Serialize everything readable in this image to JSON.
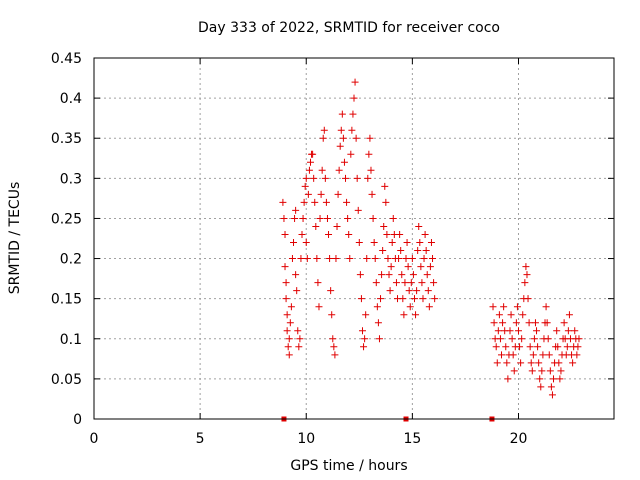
{
  "chart_data": {
    "type": "scatter",
    "title": "Day 333 of 2022, SRMTID for receiver coco",
    "xlabel": "GPS time / hours",
    "ylabel": "SRMTID / TECUs",
    "xlim": [
      0,
      24.5
    ],
    "ylim": [
      0,
      0.45
    ],
    "grid": true,
    "x_ticks": [
      0,
      5,
      10,
      15,
      20
    ],
    "x_tick_labels": [
      "0",
      "5",
      "10",
      "15",
      "20"
    ],
    "y_ticks": [
      0,
      0.05,
      0.1,
      0.15,
      0.2,
      0.25,
      0.3,
      0.35,
      0.4,
      0.45
    ],
    "y_tick_labels": [
      "0",
      "0.05",
      "0.1",
      "0.15",
      "0.2",
      "0.25",
      "0.3",
      "0.35",
      "0.4",
      "0.45"
    ],
    "marker": "+",
    "color": "#e00000",
    "series": [
      {
        "name": "SRMTID",
        "points": [
          [
            8.9,
            0.27
          ],
          [
            8.95,
            0.25
          ],
          [
            9.0,
            0.23
          ],
          [
            9.0,
            0.19
          ],
          [
            9.05,
            0.17
          ],
          [
            9.05,
            0.15
          ],
          [
            9.1,
            0.13
          ],
          [
            9.1,
            0.11
          ],
          [
            9.15,
            0.09
          ],
          [
            9.2,
            0.08
          ],
          [
            9.2,
            0.1
          ],
          [
            9.25,
            0.12
          ],
          [
            9.3,
            0.14
          ],
          [
            9.35,
            0.2
          ],
          [
            9.4,
            0.22
          ],
          [
            9.45,
            0.25
          ],
          [
            9.5,
            0.26
          ],
          [
            9.5,
            0.18
          ],
          [
            9.55,
            0.16
          ],
          [
            9.6,
            0.11
          ],
          [
            9.65,
            0.09
          ],
          [
            9.7,
            0.1
          ],
          [
            9.75,
            0.2
          ],
          [
            9.8,
            0.23
          ],
          [
            9.85,
            0.25
          ],
          [
            9.9,
            0.27
          ],
          [
            9.95,
            0.29
          ],
          [
            10.0,
            0.3
          ],
          [
            10.0,
            0.22
          ],
          [
            10.05,
            0.2
          ],
          [
            10.1,
            0.28
          ],
          [
            10.15,
            0.31
          ],
          [
            10.2,
            0.32
          ],
          [
            10.25,
            0.33
          ],
          [
            10.3,
            0.33
          ],
          [
            10.35,
            0.3
          ],
          [
            10.4,
            0.27
          ],
          [
            10.45,
            0.24
          ],
          [
            10.5,
            0.2
          ],
          [
            10.55,
            0.17
          ],
          [
            10.6,
            0.14
          ],
          [
            10.65,
            0.25
          ],
          [
            10.7,
            0.28
          ],
          [
            10.75,
            0.31
          ],
          [
            10.8,
            0.35
          ],
          [
            10.85,
            0.36
          ],
          [
            10.9,
            0.3
          ],
          [
            10.95,
            0.27
          ],
          [
            11.0,
            0.25
          ],
          [
            11.05,
            0.23
          ],
          [
            11.1,
            0.2
          ],
          [
            11.15,
            0.16
          ],
          [
            11.2,
            0.13
          ],
          [
            11.25,
            0.1
          ],
          [
            11.3,
            0.09
          ],
          [
            11.35,
            0.08
          ],
          [
            11.4,
            0.2
          ],
          [
            11.45,
            0.24
          ],
          [
            11.5,
            0.28
          ],
          [
            11.55,
            0.31
          ],
          [
            11.6,
            0.34
          ],
          [
            11.65,
            0.36
          ],
          [
            11.7,
            0.38
          ],
          [
            11.75,
            0.35
          ],
          [
            11.8,
            0.32
          ],
          [
            11.85,
            0.3
          ],
          [
            11.9,
            0.27
          ],
          [
            11.95,
            0.25
          ],
          [
            12.0,
            0.23
          ],
          [
            12.05,
            0.2
          ],
          [
            12.1,
            0.33
          ],
          [
            12.15,
            0.36
          ],
          [
            12.2,
            0.38
          ],
          [
            12.25,
            0.4
          ],
          [
            12.3,
            0.42
          ],
          [
            12.35,
            0.35
          ],
          [
            12.4,
            0.3
          ],
          [
            12.45,
            0.26
          ],
          [
            12.5,
            0.22
          ],
          [
            12.55,
            0.18
          ],
          [
            12.6,
            0.15
          ],
          [
            12.65,
            0.11
          ],
          [
            12.7,
            0.09
          ],
          [
            12.75,
            0.1
          ],
          [
            12.8,
            0.13
          ],
          [
            12.85,
            0.2
          ],
          [
            12.9,
            0.3
          ],
          [
            12.95,
            0.33
          ],
          [
            13.0,
            0.35
          ],
          [
            13.05,
            0.31
          ],
          [
            13.1,
            0.28
          ],
          [
            13.15,
            0.25
          ],
          [
            13.2,
            0.22
          ],
          [
            13.25,
            0.2
          ],
          [
            13.3,
            0.17
          ],
          [
            13.35,
            0.14
          ],
          [
            13.4,
            0.12
          ],
          [
            13.45,
            0.1
          ],
          [
            13.5,
            0.15
          ],
          [
            13.55,
            0.18
          ],
          [
            13.6,
            0.21
          ],
          [
            13.65,
            0.24
          ],
          [
            13.7,
            0.29
          ],
          [
            13.75,
            0.27
          ],
          [
            13.8,
            0.23
          ],
          [
            13.85,
            0.2
          ],
          [
            13.9,
            0.18
          ],
          [
            13.95,
            0.16
          ],
          [
            14.0,
            0.19
          ],
          [
            14.05,
            0.22
          ],
          [
            14.1,
            0.25
          ],
          [
            14.15,
            0.23
          ],
          [
            14.2,
            0.2
          ],
          [
            14.25,
            0.17
          ],
          [
            14.3,
            0.15
          ],
          [
            14.35,
            0.2
          ],
          [
            14.4,
            0.23
          ],
          [
            14.45,
            0.21
          ],
          [
            14.5,
            0.18
          ],
          [
            14.55,
            0.15
          ],
          [
            14.6,
            0.13
          ],
          [
            14.65,
            0.17
          ],
          [
            14.7,
            0.2
          ],
          [
            14.75,
            0.22
          ],
          [
            14.8,
            0.19
          ],
          [
            14.85,
            0.16
          ],
          [
            14.9,
            0.14
          ],
          [
            14.95,
            0.17
          ],
          [
            15.0,
            0.2
          ],
          [
            15.05,
            0.18
          ],
          [
            15.1,
            0.15
          ],
          [
            15.15,
            0.13
          ],
          [
            15.2,
            0.16
          ],
          [
            15.25,
            0.21
          ],
          [
            15.3,
            0.24
          ],
          [
            15.35,
            0.22
          ],
          [
            15.4,
            0.19
          ],
          [
            15.45,
            0.17
          ],
          [
            15.5,
            0.15
          ],
          [
            15.55,
            0.2
          ],
          [
            15.6,
            0.23
          ],
          [
            15.65,
            0.21
          ],
          [
            15.7,
            0.18
          ],
          [
            15.75,
            0.16
          ],
          [
            15.8,
            0.14
          ],
          [
            15.85,
            0.19
          ],
          [
            15.9,
            0.22
          ],
          [
            15.95,
            0.2
          ],
          [
            16.0,
            0.17
          ],
          [
            16.05,
            0.15
          ],
          [
            18.8,
            0.14
          ],
          [
            18.85,
            0.12
          ],
          [
            18.9,
            0.1
          ],
          [
            18.95,
            0.09
          ],
          [
            19.0,
            0.07
          ],
          [
            19.05,
            0.11
          ],
          [
            19.1,
            0.13
          ],
          [
            19.15,
            0.1
          ],
          [
            19.2,
            0.08
          ],
          [
            19.25,
            0.12
          ],
          [
            19.3,
            0.14
          ],
          [
            19.35,
            0.11
          ],
          [
            19.4,
            0.09
          ],
          [
            19.45,
            0.07
          ],
          [
            19.5,
            0.05
          ],
          [
            19.55,
            0.08
          ],
          [
            19.6,
            0.11
          ],
          [
            19.65,
            0.13
          ],
          [
            19.7,
            0.1
          ],
          [
            19.75,
            0.08
          ],
          [
            19.8,
            0.06
          ],
          [
            19.85,
            0.09
          ],
          [
            19.9,
            0.12
          ],
          [
            19.95,
            0.14
          ],
          [
            20.0,
            0.11
          ],
          [
            20.05,
            0.09
          ],
          [
            20.1,
            0.07
          ],
          [
            20.15,
            0.1
          ],
          [
            20.2,
            0.13
          ],
          [
            20.25,
            0.15
          ],
          [
            20.3,
            0.17
          ],
          [
            20.35,
            0.19
          ],
          [
            20.4,
            0.18
          ],
          [
            20.45,
            0.15
          ],
          [
            20.5,
            0.12
          ],
          [
            20.55,
            0.09
          ],
          [
            20.6,
            0.07
          ],
          [
            20.65,
            0.06
          ],
          [
            20.7,
            0.08
          ],
          [
            20.75,
            0.1
          ],
          [
            20.8,
            0.12
          ],
          [
            20.85,
            0.11
          ],
          [
            20.9,
            0.09
          ],
          [
            20.95,
            0.07
          ],
          [
            21.0,
            0.05
          ],
          [
            21.05,
            0.04
          ],
          [
            21.1,
            0.06
          ],
          [
            21.15,
            0.08
          ],
          [
            21.2,
            0.1
          ],
          [
            21.25,
            0.12
          ],
          [
            21.3,
            0.14
          ],
          [
            21.35,
            0.12
          ],
          [
            21.4,
            0.1
          ],
          [
            21.45,
            0.08
          ],
          [
            21.5,
            0.06
          ],
          [
            21.55,
            0.04
          ],
          [
            21.6,
            0.03
          ],
          [
            21.65,
            0.05
          ],
          [
            21.7,
            0.07
          ],
          [
            21.75,
            0.09
          ],
          [
            21.8,
            0.11
          ],
          [
            21.85,
            0.09
          ],
          [
            21.9,
            0.07
          ],
          [
            21.95,
            0.05
          ],
          [
            22.0,
            0.06
          ],
          [
            22.05,
            0.08
          ],
          [
            22.1,
            0.1
          ],
          [
            22.15,
            0.12
          ],
          [
            22.2,
            0.1
          ],
          [
            22.25,
            0.08
          ],
          [
            22.3,
            0.09
          ],
          [
            22.35,
            0.11
          ],
          [
            22.4,
            0.13
          ],
          [
            22.45,
            0.1
          ],
          [
            22.5,
            0.08
          ],
          [
            22.55,
            0.07
          ],
          [
            22.6,
            0.09
          ],
          [
            22.65,
            0.11
          ],
          [
            22.7,
            0.1
          ],
          [
            22.75,
            0.08
          ],
          [
            22.8,
            0.09
          ],
          [
            22.85,
            0.1
          ]
        ]
      }
    ],
    "zero_markers": [
      8.95,
      14.7,
      18.75
    ]
  }
}
